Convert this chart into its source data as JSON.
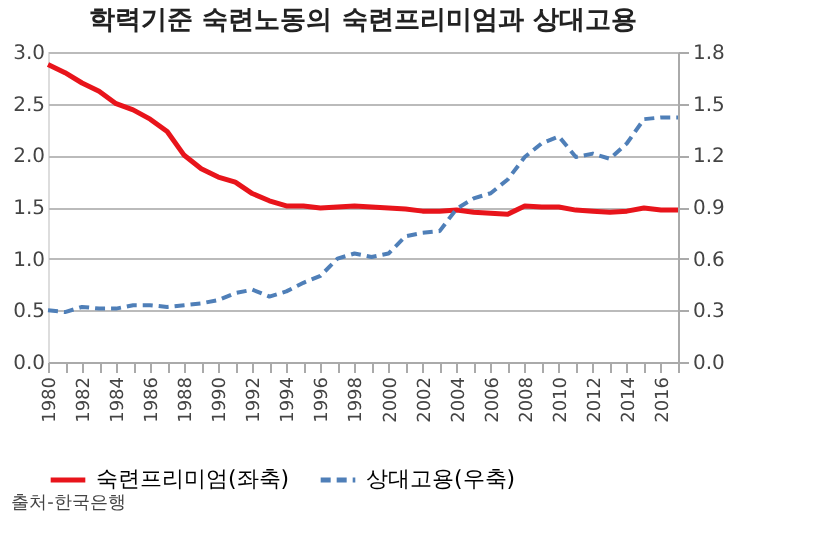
{
  "chart_data": {
    "type": "line",
    "title": "학력기준 숙련노동의 숙련프리미엄과 상대고용",
    "categories": [
      "1980",
      null,
      "1982",
      null,
      "1984",
      null,
      "1986",
      null,
      "1988",
      null,
      "1990",
      null,
      "1992",
      null,
      "1994",
      null,
      "1996",
      null,
      "1998",
      null,
      "2000",
      null,
      "2002",
      null,
      "2004",
      null,
      "2006",
      null,
      "2008",
      null,
      "2010",
      null,
      "2012",
      null,
      "2014",
      null,
      "2016",
      null
    ],
    "series": [
      {
        "name": "숙련프리미엄(좌축)",
        "color": "#e8141b",
        "line_style": "solid",
        "values": [
          2.88,
          2.8,
          2.7,
          2.62,
          2.5,
          2.44,
          2.35,
          2.23,
          2.0,
          1.87,
          1.79,
          1.74,
          1.63,
          1.56,
          1.51,
          1.51,
          1.49,
          1.5,
          1.51,
          1.5,
          1.49,
          1.48,
          1.46,
          1.46,
          1.47,
          1.45,
          1.44,
          1.43,
          1.51,
          1.5,
          1.5,
          1.47,
          1.46,
          1.45,
          1.46,
          1.49,
          1.47,
          1.47
        ]
      },
      {
        "name": "상대고용(우축)",
        "color": "#4f7fb8",
        "line_style": "dashed",
        "axis": "y2",
        "values": [
          0.3,
          0.29,
          0.32,
          0.31,
          0.31,
          0.33,
          0.33,
          0.32,
          0.33,
          0.34,
          0.36,
          0.4,
          0.42,
          0.38,
          0.41,
          0.46,
          0.5,
          0.6,
          0.63,
          0.61,
          0.63,
          0.73,
          0.75,
          0.76,
          0.89,
          0.95,
          0.98,
          1.06,
          1.19,
          1.27,
          1.31,
          1.19,
          1.21,
          1.18,
          1.27,
          1.41,
          1.42,
          1.42
        ]
      }
    ],
    "ylim": [
      0,
      3.0
    ],
    "yticks": [
      {
        "value": 0,
        "label": "0.0"
      },
      {
        "value": 0.5,
        "label": "0.5"
      },
      {
        "value": 1,
        "label": "1.0"
      },
      {
        "value": 1.5,
        "label": "1.5"
      },
      {
        "value": 2,
        "label": "2.0"
      },
      {
        "value": 2.5,
        "label": "2.5"
      },
      {
        "value": 3,
        "label": "3.0"
      }
    ],
    "y2lim": [
      0,
      1.8
    ],
    "y2ticks": [
      {
        "value": 0,
        "label": "0.0"
      },
      {
        "value": 0.3,
        "label": "0.3"
      },
      {
        "value": 0.6,
        "label": "0.6"
      },
      {
        "value": 0.9,
        "label": "0.9"
      },
      {
        "value": 1.2,
        "label": "1.2"
      },
      {
        "value": 1.5,
        "label": "1.5"
      },
      {
        "value": 1.8,
        "label": "1.8"
      }
    ],
    "grid": "y",
    "legend": "bottom",
    "marker": "none",
    "annotations": [
      "출처-한국은행"
    ]
  }
}
